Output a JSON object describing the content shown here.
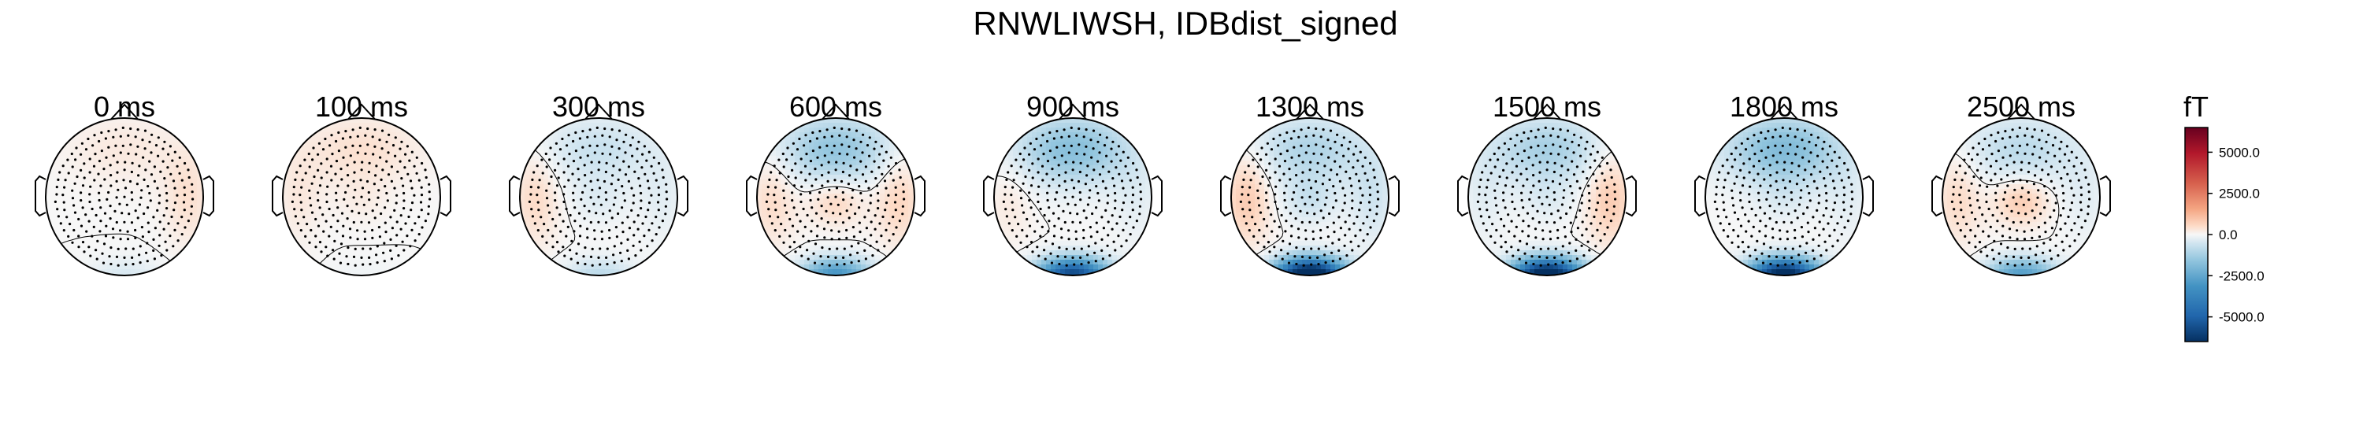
{
  "chart_data": {
    "type": "heatmap",
    "title": "RNWLIWSH, IDBdist_signed",
    "grid": false,
    "times": [
      {
        "label": "0 ms"
      },
      {
        "label": "100 ms"
      },
      {
        "label": "300 ms"
      },
      {
        "label": "600 ms"
      },
      {
        "label": "900 ms"
      },
      {
        "label": "1300 ms"
      },
      {
        "label": "1500 ms"
      },
      {
        "label": "1800 ms"
      },
      {
        "label": "2500 ms"
      }
    ],
    "patterns": [
      {
        "frontal": 0.05,
        "occipital": -0.08,
        "center": 0.0,
        "left": 0.0,
        "right": 0.08
      },
      {
        "frontal": 0.08,
        "occipital": -0.02,
        "center": 0.03,
        "left": 0.05,
        "right": 0.0
      },
      {
        "frontal": -0.12,
        "occipital": -0.15,
        "center": -0.05,
        "left": 0.1,
        "right": -0.05
      },
      {
        "frontal": -0.25,
        "occipital": -0.5,
        "center": 0.12,
        "left": 0.1,
        "right": 0.12
      },
      {
        "frontal": -0.28,
        "occipital": -0.9,
        "center": 0.0,
        "left": 0.05,
        "right": -0.05
      },
      {
        "frontal": -0.18,
        "occipital": -1.2,
        "center": -0.1,
        "left": 0.15,
        "right": -0.1
      },
      {
        "frontal": -0.2,
        "occipital": -1.15,
        "center": -0.05,
        "left": -0.05,
        "right": 0.15
      },
      {
        "frontal": -0.3,
        "occipital": -1.1,
        "center": -0.05,
        "left": 0.0,
        "right": -0.05
      },
      {
        "frontal": -0.15,
        "occipital": -0.45,
        "center": 0.15,
        "left": 0.1,
        "right": -0.05
      }
    ],
    "colorbar": {
      "unit": "fT",
      "ticks": [
        "5000.0",
        "2500.0",
        "0.0",
        "-2500.0",
        "-5000.0"
      ],
      "tick_values": [
        5000,
        2500,
        0,
        -2500,
        -5000
      ],
      "range": [
        -6500,
        6500
      ],
      "colormap": "RdBu_r"
    },
    "colors": {
      "negative_strong": "#053061",
      "negative": "#2166ac",
      "neutral": "#f7f7f7",
      "positive": "#d6604d",
      "positive_strong": "#67001f"
    }
  }
}
